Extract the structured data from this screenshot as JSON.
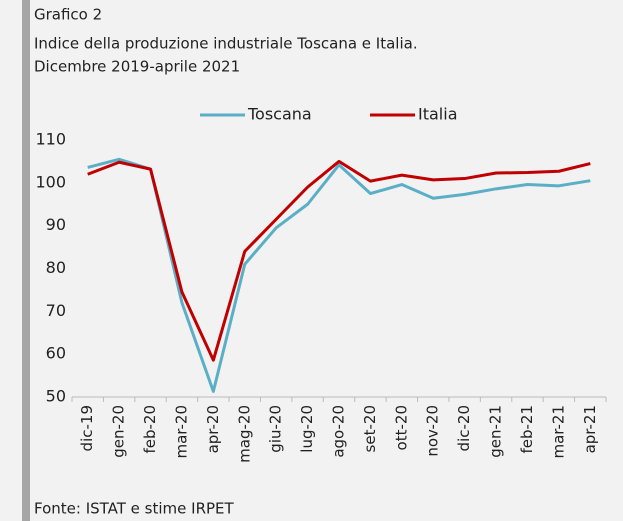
{
  "chart_data": {
    "type": "line",
    "label": "Grafico 2",
    "title": "Indice della produzione industriale Toscana e Italia.",
    "subtitle": "Dicembre 2019-aprile 2021",
    "source": "Fonte: ISTAT e stime IRPET",
    "categories": [
      "dic-19",
      "gen-20",
      "feb-20",
      "mar-20",
      "apr-20",
      "mag-20",
      "giu-20",
      "lug-20",
      "ago-20",
      "set-20",
      "ott-20",
      "nov-20",
      "dic-20",
      "gen-21",
      "feb-21",
      "mar-21",
      "apr-21"
    ],
    "series": [
      {
        "name": "Toscana",
        "color": "#5aafc7",
        "values": [
          103.6,
          105.5,
          103.2,
          72,
          51.3,
          81,
          89.5,
          95,
          104.2,
          97.5,
          99.6,
          96.4,
          97.3,
          98.6,
          99.6,
          99.3,
          100.5
        ]
      },
      {
        "name": "Italia",
        "color": "#c00000",
        "values": [
          102,
          104.8,
          103.2,
          74.5,
          58.6,
          84,
          91.5,
          99,
          105,
          100.4,
          101.8,
          100.7,
          101,
          102.3,
          102.4,
          102.7,
          104.5
        ]
      }
    ],
    "ylim": [
      50,
      110
    ],
    "yticks": [
      50,
      60,
      70,
      80,
      90,
      100,
      110
    ],
    "grid": false,
    "legend": "top"
  }
}
